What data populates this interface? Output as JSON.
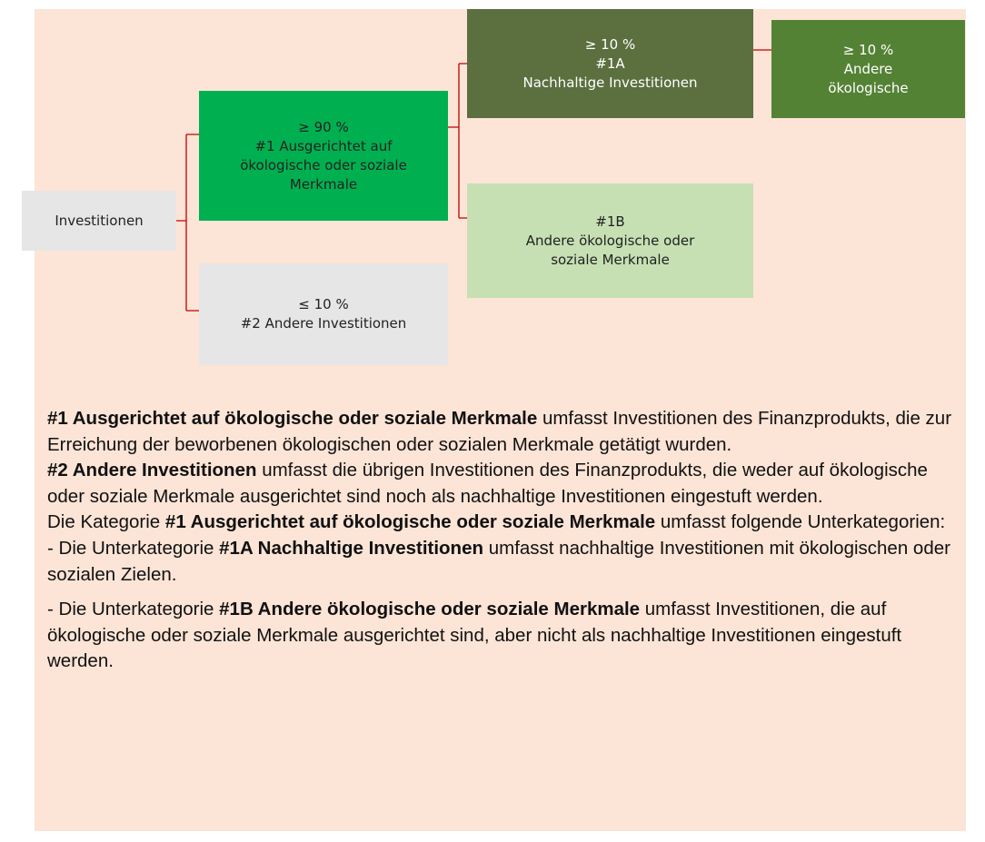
{
  "nodes": [
    {
      "lines": [
        "Investitionen"
      ]
    },
    {
      "lines": [
        "≥ 90 %",
        "#1 Ausgerichtet auf",
        "ökologische oder soziale",
        "Merkmale"
      ]
    },
    {
      "lines": [
        "≤ 10 %",
        "#2 Andere Investitionen"
      ]
    },
    {
      "lines": [
        "≥ 10 %",
        "#1A",
        "Nachhaltige Investitionen"
      ]
    },
    {
      "lines": [
        "≥ 10 %",
        "Andere",
        "ökologische"
      ]
    },
    {
      "lines": [
        "#1B",
        "Andere ökologische oder",
        "soziale Merkmale"
      ]
    }
  ],
  "paragraphs": [
    {
      "segments": [
        {
          "text": "#1 Ausgerichtet auf ökologische oder soziale Merkmale",
          "bold": true
        },
        {
          "text": " umfasst Investitionen des Finanzprodukts, die zur Erreichung der beworbenen ökologischen oder sozialen Merkmale getätigt wurden."
        }
      ]
    },
    {
      "segments": [
        {
          "text": "#2 Andere Investitionen",
          "bold": true
        },
        {
          "text": " umfasst die übrigen Investitionen des Finanzprodukts, die weder auf ökologische oder soziale Merkmale ausgerichtet sind noch als nachhaltige Investitionen eingestuft werden."
        }
      ]
    },
    {
      "segments": [
        {
          "text": "Die Kategorie "
        },
        {
          "text": "#1 Ausgerichtet auf ökologische oder soziale Merkmale",
          "bold": true
        },
        {
          "text": " umfasst folgende Unterkategorien:"
        }
      ]
    },
    {
      "segments": [
        {
          "text": "- Die Unterkategorie "
        },
        {
          "text": "#1A Nachhaltige Investitionen",
          "bold": true
        },
        {
          "text": " umfasst nachhaltige Investitionen mit ökologischen oder sozialen Zielen."
        }
      ]
    },
    {
      "segments": [
        {
          "text": "- Die Unterkategorie "
        },
        {
          "text": "#1B Andere ökologische oder soziale Merkmale",
          "bold": true
        },
        {
          "text": " umfasst Investitionen, die auf ökologische oder soziale Merkmale ausgerichtet sind, aber nicht als nachhaltige Investitionen eingestuft werden."
        }
      ]
    }
  ]
}
